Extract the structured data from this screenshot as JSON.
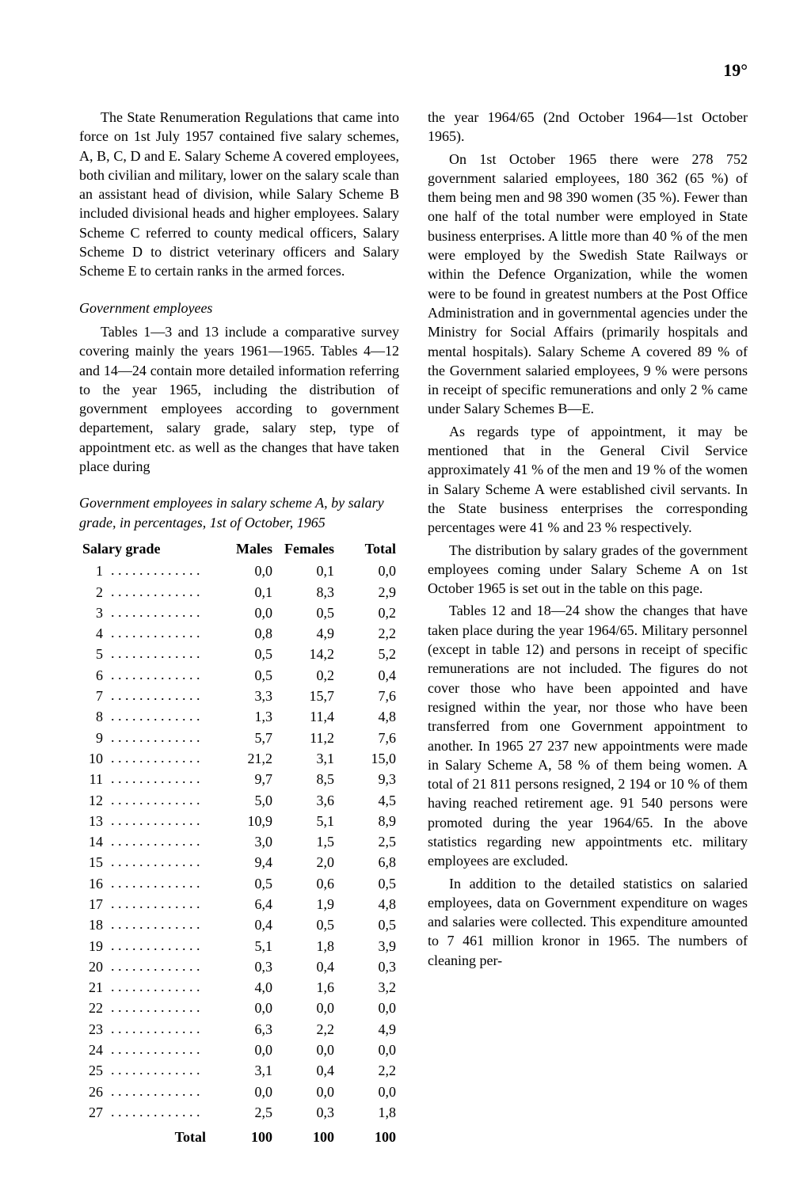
{
  "page_number_label": "19°",
  "left": {
    "p1": "The State Renumeration Regulations that came into force on 1st July 1957 contained five salary schemes, A, B, C, D and E. Salary Scheme A covered employees, both civilian and military, lower on the salary scale than an assistant head of division, while Salary Scheme B included divisional heads and higher employees. Salary Scheme C referred to county medical officers, Salary Scheme D to district veterinary officers and Salary Scheme E to certain ranks in the armed forces.",
    "section_title": "Government employees",
    "p2": "Tables 1—3 and 13 include a comparative survey covering mainly the years 1961—1965. Tables 4—12 and 14—24 contain more detailed information referring to the year 1965, including the distribution of government employees according to government departement, salary grade, salary step, type of appointment etc. as well as the changes that have taken place during",
    "table_caption": "Government employees in salary scheme A, by salary grade, in percentages, 1st of October, 1965",
    "table": {
      "columns": [
        "Salary grade",
        "Males",
        "Females",
        "Total"
      ],
      "rows": [
        [
          "1",
          "0,0",
          "0,1",
          "0,0"
        ],
        [
          "2",
          "0,1",
          "8,3",
          "2,9"
        ],
        [
          "3",
          "0,0",
          "0,5",
          "0,2"
        ],
        [
          "4",
          "0,8",
          "4,9",
          "2,2"
        ],
        [
          "5",
          "0,5",
          "14,2",
          "5,2"
        ],
        [
          "6",
          "0,5",
          "0,2",
          "0,4"
        ],
        [
          "7",
          "3,3",
          "15,7",
          "7,6"
        ],
        [
          "8",
          "1,3",
          "11,4",
          "4,8"
        ],
        [
          "9",
          "5,7",
          "11,2",
          "7,6"
        ],
        [
          "10",
          "21,2",
          "3,1",
          "15,0"
        ],
        [
          "11",
          "9,7",
          "8,5",
          "9,3"
        ],
        [
          "12",
          "5,0",
          "3,6",
          "4,5"
        ],
        [
          "13",
          "10,9",
          "5,1",
          "8,9"
        ],
        [
          "14",
          "3,0",
          "1,5",
          "2,5"
        ],
        [
          "15",
          "9,4",
          "2,0",
          "6,8"
        ],
        [
          "16",
          "0,5",
          "0,6",
          "0,5"
        ],
        [
          "17",
          "6,4",
          "1,9",
          "4,8"
        ],
        [
          "18",
          "0,4",
          "0,5",
          "0,5"
        ],
        [
          "19",
          "5,1",
          "1,8",
          "3,9"
        ],
        [
          "20",
          "0,3",
          "0,4",
          "0,3"
        ],
        [
          "21",
          "4,0",
          "1,6",
          "3,2"
        ],
        [
          "22",
          "0,0",
          "0,0",
          "0,0"
        ],
        [
          "23",
          "6,3",
          "2,2",
          "4,9"
        ],
        [
          "24",
          "0,0",
          "0,0",
          "0,0"
        ],
        [
          "25",
          "3,1",
          "0,4",
          "2,2"
        ],
        [
          "26",
          "0,0",
          "0,0",
          "0,0"
        ],
        [
          "27",
          "2,5",
          "0,3",
          "1,8"
        ]
      ],
      "total_label": "Total",
      "total_row": [
        "100",
        "100",
        "100"
      ]
    }
  },
  "right": {
    "p0": "the year 1964/65 (2nd October 1964—1st October 1965).",
    "p1": "On 1st October 1965 there were 278 752 government salaried employees, 180 362 (65 %) of them being men and 98 390 women (35 %). Fewer than one half of the total number were employed in State business enterprises. A little more than 40 % of the men were employed by the Swedish State Railways or within the Defence Organization, while the women were to be found in greatest numbers at the Post Office Administration and in governmental agencies under the Ministry for Social Affairs (primarily hospitals and mental hospitals). Salary Scheme A covered 89 % of the Government salaried employees, 9 % were persons in receipt of specific remunerations and only 2 % came under Salary Schemes B—E.",
    "p2": "As regards type of appointment, it may be mentioned that in the General Civil Service approximately 41 % of the men and 19 % of the women in Salary Scheme A were established civil servants. In the State business enterprises the corresponding percentages were 41 % and 23 % respectively.",
    "p3": "The distribution by salary grades of the government employees coming under Salary Scheme A on 1st October 1965 is set out in the table on this page.",
    "p4": "Tables 12 and 18—24 show the changes that have taken place during the year 1964/65. Military personnel (except in table 12) and persons in receipt of specific remunerations are not included. The figures do not cover those who have been appointed and have resigned within the year, nor those who have been transferred from one Government appointment to another. In 1965 27 237 new appointments were made in Salary Scheme A, 58 % of them being women. A total of 21 811 persons resigned, 2 194 or 10 % of them having reached retirement age. 91 540 persons were promoted during the year 1964/65. In the above statistics regarding new appointments etc. military employees are excluded.",
    "p5": "In addition to the detailed statistics on salaried employees, data on Government expenditure on wages and salaries were collected. This expenditure amounted to 7 461 million kronor in 1965. The numbers of cleaning per-"
  }
}
